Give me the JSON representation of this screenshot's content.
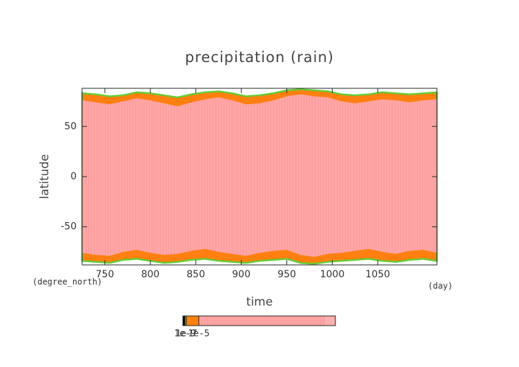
{
  "chart_data": {
    "type": "heatmap",
    "title": "precipitation (rain)",
    "x_label": "time",
    "y_label": "latitude",
    "x_unit": "(day)",
    "y_unit": "(degree_north)",
    "xlim": [
      725,
      1115
    ],
    "xticks": [
      750,
      800,
      850,
      900,
      950,
      1000,
      1050
    ],
    "ylim": [
      -88,
      88
    ],
    "yticks": [
      -50,
      0,
      50
    ],
    "colors": {
      "edge": "#66cc33",
      "fringe": "#ff8010",
      "body": "#ffa5a5"
    },
    "field": {
      "x": [
        725,
        740,
        755,
        770,
        785,
        800,
        815,
        830,
        845,
        860,
        875,
        890,
        905,
        920,
        935,
        950,
        965,
        980,
        995,
        1010,
        1025,
        1040,
        1055,
        1070,
        1085,
        1100,
        1115
      ],
      "upper_edge": [
        83,
        82,
        80,
        81,
        84,
        83,
        81,
        79,
        82,
        84,
        85,
        83,
        80,
        81,
        83,
        86,
        87,
        86,
        85,
        82,
        81,
        82,
        84,
        83,
        82,
        83,
        84
      ],
      "upper_body": [
        76,
        74,
        72,
        75,
        78,
        76,
        73,
        70,
        74,
        77,
        79,
        76,
        72,
        73,
        76,
        80,
        82,
        80,
        79,
        75,
        73,
        75,
        77,
        76,
        74,
        76,
        77
      ],
      "lower_body": [
        -76,
        -78,
        -79,
        -75,
        -73,
        -76,
        -78,
        -77,
        -74,
        -72,
        -75,
        -77,
        -79,
        -76,
        -74,
        -73,
        -78,
        -80,
        -77,
        -76,
        -74,
        -72,
        -75,
        -77,
        -74,
        -73,
        -76
      ],
      "lower_edge": [
        -84,
        -85,
        -86,
        -83,
        -82,
        -84,
        -86,
        -85,
        -83,
        -82,
        -84,
        -85,
        -86,
        -84,
        -83,
        -82,
        -86,
        -87,
        -85,
        -84,
        -83,
        -82,
        -84,
        -85,
        -83,
        -82,
        -84
      ]
    },
    "colorbar": {
      "colors": [
        "#000000",
        "#66cc33",
        "#ff8010",
        "#ffa5a5",
        "#ffb0b0"
      ],
      "ticks": [
        1e-09,
        {
          "value": 1e-07,
          "label": "1e-7"
        },
        {
          "value": 1e-05,
          "label": "1e-5"
        }
      ]
    }
  }
}
